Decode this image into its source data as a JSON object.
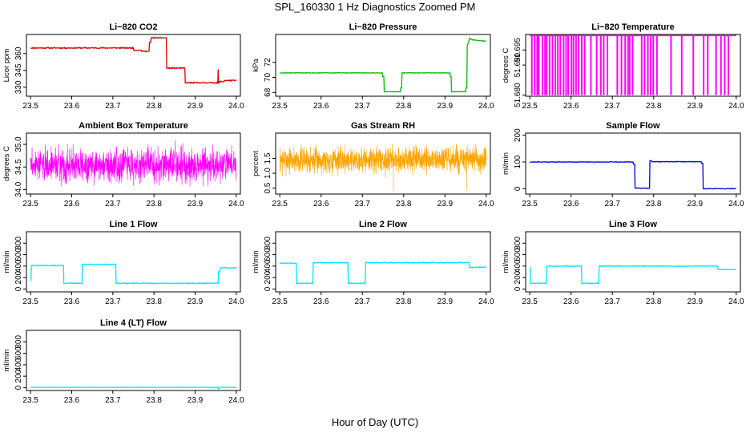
{
  "figure": {
    "title": "SPL_160330  1 Hz Diagnostics Zoomed PM",
    "xlabel": "Hour of Day (UTC)"
  },
  "chart_data": [
    {
      "type": "line",
      "title": "Li−820 CO2",
      "ylabel": "Licor ppm",
      "color": "#e00000",
      "xlim": [
        23.49,
        24.01
      ],
      "xticks": [
        "23.5",
        "23.6",
        "23.7",
        "23.8",
        "23.9",
        "24.0"
      ],
      "ylim": [
        322,
        377
      ],
      "yticks": [
        {
          "v": 330,
          "label": "330"
        },
        {
          "v": 345,
          "label": "345"
        },
        {
          "v": 360,
          "label": "360"
        }
      ],
      "noise": 0.5,
      "seed": 11,
      "x": [
        23.5,
        23.75,
        23.751,
        23.769,
        23.77,
        23.788,
        23.789,
        23.792,
        23.793,
        23.83,
        23.831,
        23.875,
        23.876,
        23.955,
        23.956,
        23.957,
        23.958,
        23.97,
        23.971,
        24.0
      ],
      "y": [
        365,
        365,
        363,
        363,
        362,
        362,
        370,
        370,
        374,
        374,
        347,
        347,
        334,
        334,
        346,
        333,
        335,
        335,
        336,
        336
      ]
    },
    {
      "type": "line",
      "title": "Li−820 Pressure",
      "ylabel": "kPa",
      "color": "#00bb00",
      "xlim": [
        23.49,
        24.01
      ],
      "xticks": [
        "23.5",
        "23.6",
        "23.7",
        "23.8",
        "23.9",
        "24.0"
      ],
      "ylim": [
        67.5,
        75.7
      ],
      "yticks": [
        {
          "v": 68,
          "label": "68"
        },
        {
          "v": 70,
          "label": "70"
        },
        {
          "v": 72,
          "label": "72"
        }
      ],
      "noise": 0.03,
      "seed": 12,
      "x": [
        23.5,
        23.748,
        23.749,
        23.752,
        23.753,
        23.792,
        23.793,
        23.795,
        23.796,
        23.912,
        23.913,
        23.915,
        23.916,
        23.95,
        23.951,
        23.953,
        23.954,
        23.96,
        23.965,
        24.0
      ],
      "y": [
        70.6,
        70.6,
        70.1,
        70.1,
        68.1,
        68.1,
        68.6,
        68.6,
        70.6,
        70.6,
        70.1,
        70.1,
        68.1,
        68.1,
        68.6,
        68.6,
        74.2,
        75.2,
        75.0,
        74.8
      ]
    },
    {
      "type": "spikes",
      "title": "Li−820 Temperature",
      "ylabel": "degrees C",
      "color": "#ff00ff",
      "xlim": [
        23.49,
        24.01
      ],
      "xticks": [
        "23.5",
        "23.6",
        "23.7",
        "23.8",
        "23.9",
        "24.0"
      ],
      "ylim": [
        51.67965,
        51.70015
      ],
      "yticks": [
        {
          "v": 51.68,
          "label": "51.680"
        },
        {
          "v": 51.69,
          "label": "51.690"
        },
        {
          "v": 51.695,
          "label": "51.695"
        }
      ],
      "base": 51.6998,
      "low": 51.68,
      "spikes": [
        23.505,
        23.512,
        23.518,
        23.522,
        23.531,
        23.537,
        23.541,
        23.548,
        23.555,
        23.562,
        23.568,
        23.574,
        23.582,
        23.588,
        23.593,
        23.601,
        23.606,
        23.612,
        23.618,
        23.626,
        23.633,
        23.648,
        23.662,
        23.672,
        23.679,
        23.688,
        23.712,
        23.722,
        23.731,
        23.738,
        23.742,
        23.749,
        23.771,
        23.778,
        23.786,
        23.793,
        23.799,
        23.808,
        23.842,
        23.868,
        23.896,
        23.921,
        23.931,
        23.951,
        23.963,
        23.972,
        23.981
      ]
    },
    {
      "type": "noise",
      "title": "Ambient Box Temperature",
      "ylabel": "degrees C",
      "color": "#ff00ff",
      "xlim": [
        23.49,
        24.01
      ],
      "xticks": [
        "23.5",
        "23.6",
        "23.7",
        "23.8",
        "23.9",
        "24.0"
      ],
      "ylim": [
        33.9,
        35.25
      ],
      "yticks": [
        {
          "v": 34.0,
          "label": "34.0"
        },
        {
          "v": 34.5,
          "label": "34.5"
        },
        {
          "v": 35.0,
          "label": "35.0"
        }
      ],
      "center": 34.55,
      "amp": 0.28,
      "amp_start": 0.22,
      "n": 1200,
      "seed": 3,
      "width": 0.6
    },
    {
      "type": "noise",
      "title": "Gas Stream RH",
      "ylabel": "percent",
      "color": "#ffa500",
      "xlim": [
        23.49,
        24.01
      ],
      "xticks": [
        "23.5",
        "23.6",
        "23.7",
        "23.8",
        "23.9",
        "24.0"
      ],
      "ylim": [
        0.3,
        2.35
      ],
      "yticks": [
        {
          "v": 0.5,
          "label": "0.5"
        },
        {
          "v": 1.0,
          "label": "1.0"
        },
        {
          "v": 1.5,
          "label": "1.5"
        }
      ],
      "center": 1.45,
      "amp": 0.32,
      "amp_start": 0.32,
      "n": 1500,
      "seed": 7,
      "width": 0.6,
      "outliers": [
        {
          "x": 23.775,
          "y": 0.4
        },
        {
          "x": 23.953,
          "y": 0.42
        },
        {
          "x": 23.506,
          "y": 0.9
        }
      ]
    },
    {
      "type": "line",
      "title": "Sample Flow",
      "ylabel": "ml/min",
      "color": "#0000dd",
      "xlim": [
        23.49,
        24.01
      ],
      "xticks": [
        "23.5",
        "23.6",
        "23.7",
        "23.8",
        "23.9",
        "24.0"
      ],
      "ylim": [
        -20,
        208
      ],
      "yticks": [
        {
          "v": 0,
          "label": "0"
        },
        {
          "v": 100,
          "label": "100"
        },
        {
          "v": 200,
          "label": "200"
        }
      ],
      "noise": 1.0,
      "seed": 21,
      "x": [
        23.5,
        23.75,
        23.751,
        23.754,
        23.755,
        23.79,
        23.791,
        23.794,
        23.795,
        23.915,
        23.916,
        23.919,
        23.92,
        24.0
      ],
      "y": [
        100,
        100,
        92,
        92,
        2,
        2,
        105,
        105,
        101,
        101,
        95,
        95,
        0,
        0
      ]
    },
    {
      "type": "line",
      "title": "Line 1 Flow",
      "ylabel": "ml/min",
      "color": "#00e5ff",
      "xlim": [
        23.49,
        24.01
      ],
      "xticks": [
        "23.5",
        "23.6",
        "23.7",
        "23.8",
        "23.9",
        "24.0"
      ],
      "ylim": [
        -50,
        1000
      ],
      "yticks": [
        {
          "v": 0,
          "label": "0"
        },
        {
          "v": 200,
          "label": "200"
        },
        {
          "v": 400,
          "label": "400"
        },
        {
          "v": 600,
          "label": "600"
        },
        {
          "v": 800,
          "label": "800"
        }
      ],
      "noise": 7,
      "seed": 31,
      "x": [
        23.5,
        23.501,
        23.502,
        23.58,
        23.581,
        23.625,
        23.626,
        23.707,
        23.708,
        23.956,
        23.957,
        23.96,
        23.961,
        24.0
      ],
      "y": [
        150,
        150,
        410,
        410,
        100,
        100,
        430,
        430,
        100,
        100,
        300,
        300,
        370,
        370
      ]
    },
    {
      "type": "line",
      "title": "Line 2 Flow",
      "ylabel": "ml/min",
      "color": "#00e5ff",
      "xlim": [
        23.49,
        24.01
      ],
      "xticks": [
        "23.5",
        "23.6",
        "23.7",
        "23.8",
        "23.9",
        "24.0"
      ],
      "ylim": [
        -50,
        1000
      ],
      "yticks": [
        {
          "v": 0,
          "label": "0"
        },
        {
          "v": 200,
          "label": "200"
        },
        {
          "v": 400,
          "label": "400"
        },
        {
          "v": 600,
          "label": "600"
        },
        {
          "v": 800,
          "label": "800"
        }
      ],
      "noise": 7,
      "seed": 32,
      "x": [
        23.5,
        23.54,
        23.541,
        23.58,
        23.581,
        23.665,
        23.666,
        23.707,
        23.708,
        23.958,
        23.959,
        24.0
      ],
      "y": [
        450,
        450,
        100,
        100,
        460,
        460,
        100,
        100,
        460,
        460,
        380,
        380
      ]
    },
    {
      "type": "line",
      "title": "Line 3 Flow",
      "ylabel": "ml/min",
      "color": "#00e5ff",
      "xlim": [
        23.49,
        24.01
      ],
      "xticks": [
        "23.5",
        "23.6",
        "23.7",
        "23.8",
        "23.9",
        "24.0"
      ],
      "ylim": [
        -50,
        1000
      ],
      "yticks": [
        {
          "v": 0,
          "label": "0"
        },
        {
          "v": 200,
          "label": "200"
        },
        {
          "v": 400,
          "label": "400"
        },
        {
          "v": 600,
          "label": "600"
        },
        {
          "v": 800,
          "label": "800"
        }
      ],
      "noise": 6,
      "seed": 33,
      "x": [
        23.5,
        23.501,
        23.502,
        23.54,
        23.541,
        23.625,
        23.626,
        23.667,
        23.668,
        23.955,
        23.956,
        24.0
      ],
      "y": [
        380,
        380,
        100,
        100,
        400,
        400,
        100,
        100,
        400,
        400,
        340,
        340
      ]
    },
    {
      "type": "line",
      "title": "Line 4 (LT) Flow",
      "ylabel": "ml/min",
      "color": "#00e5ff",
      "xlim": [
        23.49,
        24.01
      ],
      "xticks": [
        "23.5",
        "23.6",
        "23.7",
        "23.8",
        "23.9",
        "24.0"
      ],
      "ylim": [
        -50,
        1000
      ],
      "yticks": [
        {
          "v": 0,
          "label": "0"
        },
        {
          "v": 200,
          "label": "200"
        },
        {
          "v": 400,
          "label": "400"
        },
        {
          "v": 600,
          "label": "600"
        },
        {
          "v": 800,
          "label": "800"
        }
      ],
      "noise": 2,
      "seed": 34,
      "x": [
        23.5,
        23.955,
        23.956,
        23.958,
        23.959,
        24.0
      ],
      "y": [
        5,
        5,
        -20,
        -20,
        5,
        5
      ]
    }
  ]
}
